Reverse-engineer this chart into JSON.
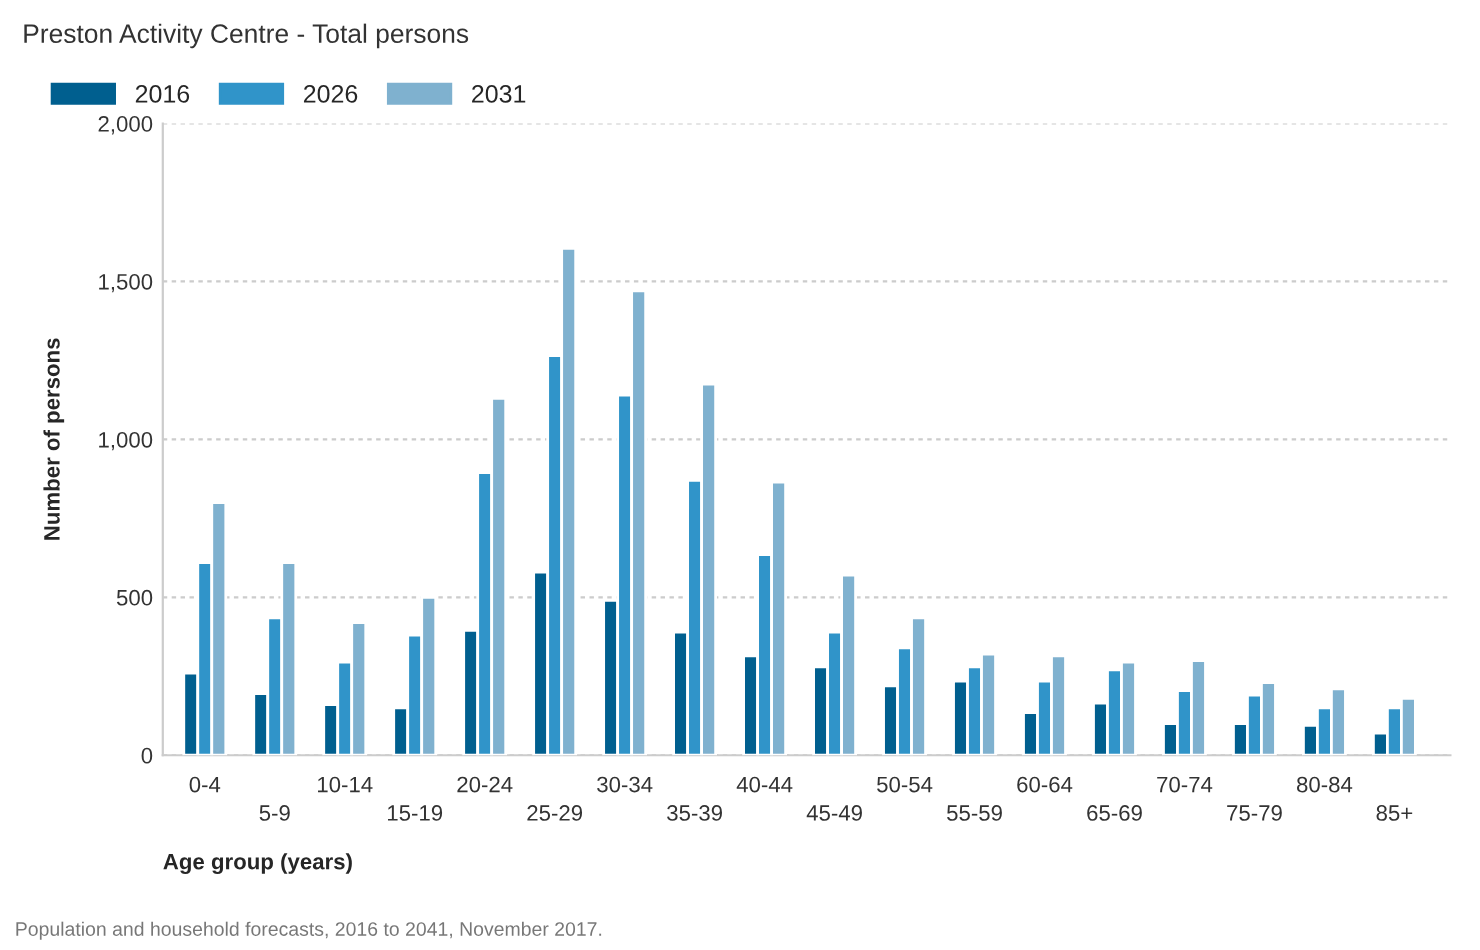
{
  "chart_data": {
    "type": "bar",
    "title": "Preston Activity Centre - Total persons",
    "xlabel": "Age group (years)",
    "ylabel": "Number of persons",
    "categories": [
      "0-4",
      "5-9",
      "10-14",
      "15-19",
      "20-24",
      "25-29",
      "30-34",
      "35-39",
      "40-44",
      "45-49",
      "50-54",
      "55-59",
      "60-64",
      "65-69",
      "70-74",
      "75-79",
      "80-84",
      "85+"
    ],
    "series": [
      {
        "name": "2016",
        "color": "#005f8f",
        "values": [
          260,
          195,
          160,
          150,
          395,
          580,
          490,
          390,
          315,
          280,
          220,
          235,
          135,
          165,
          100,
          100,
          95,
          70
        ]
      },
      {
        "name": "2026",
        "color": "#3094c9",
        "values": [
          610,
          435,
          295,
          380,
          895,
          1265,
          1140,
          870,
          635,
          390,
          340,
          280,
          235,
          270,
          205,
          190,
          150,
          150
        ]
      },
      {
        "name": "2031",
        "color": "#7fb1cf",
        "values": [
          800,
          610,
          420,
          500,
          1130,
          1605,
          1470,
          1175,
          865,
          570,
          435,
          320,
          315,
          295,
          300,
          230,
          210,
          180
        ]
      }
    ],
    "ylim": [
      0,
      2000
    ],
    "yticks": [
      0,
      {
        "value": 500,
        "label": "500"
      },
      {
        "value": 1000,
        "label": "1,000"
      },
      {
        "value": 1500,
        "label": "1,500"
      },
      {
        "value": 2000,
        "label": "2,000"
      }
    ],
    "grid": "y",
    "legend": "top left",
    "annotations": [
      "Population and household forecasts, 2016 to 2041, November 2017."
    ]
  }
}
